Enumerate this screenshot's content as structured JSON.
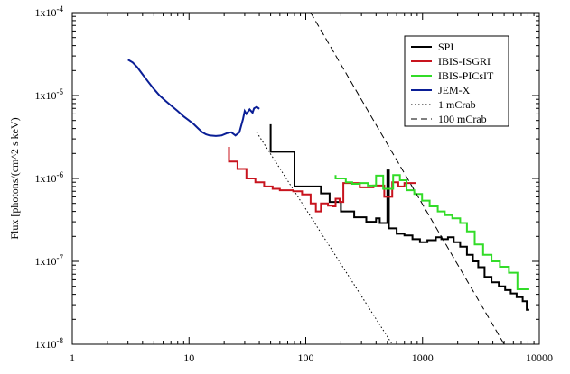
{
  "chart_data": {
    "type": "line",
    "xlabel": "",
    "ylabel": "Flux [photons/(cm^2 s keV)",
    "xscale": "log",
    "yscale": "log",
    "xlim": [
      1,
      10000
    ],
    "ylim": [
      1e-08,
      0.0001
    ],
    "grid": false,
    "legend_position": "top-right",
    "x_tick_labels": [
      "1",
      "10",
      "100",
      "1000",
      "10000"
    ],
    "y_tick_labels": [
      "1x10^-8",
      "1x10^-7",
      "1x10^-6",
      "1x10^-5",
      "1x10^-4"
    ],
    "series": [
      {
        "name": "SPI",
        "color": "#000000",
        "dash": "solid",
        "points": [
          [
            50,
            4.5e-06
          ],
          [
            50,
            2.1e-06
          ],
          [
            80,
            2.1e-06
          ],
          [
            80,
            8e-07
          ],
          [
            135,
            8e-07
          ],
          [
            135,
            6.6e-07
          ],
          [
            160,
            6.6e-07
          ],
          [
            160,
            5.2e-07
          ],
          [
            200,
            5.2e-07
          ],
          [
            200,
            4e-07
          ],
          [
            260,
            4e-07
          ],
          [
            260,
            3.4e-07
          ],
          [
            330,
            3.4e-07
          ],
          [
            330,
            3e-07
          ],
          [
            400,
            3e-07
          ],
          [
            400,
            3.3e-07
          ],
          [
            430,
            3.3e-07
          ],
          [
            430,
            2.9e-07
          ],
          [
            500,
            2.9e-07
          ],
          [
            500,
            1.25e-06
          ],
          [
            515,
            1.25e-06
          ],
          [
            515,
            2.5e-07
          ],
          [
            600,
            2.5e-07
          ],
          [
            600,
            2.15e-07
          ],
          [
            700,
            2.15e-07
          ],
          [
            700,
            2.05e-07
          ],
          [
            820,
            2.05e-07
          ],
          [
            820,
            1.85e-07
          ],
          [
            950,
            1.85e-07
          ],
          [
            950,
            1.7e-07
          ],
          [
            1100,
            1.7e-07
          ],
          [
            1100,
            1.8e-07
          ],
          [
            1300,
            1.8e-07
          ],
          [
            1300,
            1.95e-07
          ],
          [
            1450,
            1.95e-07
          ],
          [
            1450,
            1.85e-07
          ],
          [
            1650,
            1.85e-07
          ],
          [
            1650,
            1.95e-07
          ],
          [
            1850,
            1.95e-07
          ],
          [
            1850,
            1.7e-07
          ],
          [
            2100,
            1.7e-07
          ],
          [
            2100,
            1.5e-07
          ],
          [
            2400,
            1.5e-07
          ],
          [
            2400,
            1.2e-07
          ],
          [
            2700,
            1.2e-07
          ],
          [
            2700,
            1e-07
          ],
          [
            3000,
            1e-07
          ],
          [
            3000,
            8.5e-08
          ],
          [
            3400,
            8.5e-08
          ],
          [
            3400,
            6.5e-08
          ],
          [
            3900,
            6.5e-08
          ],
          [
            3900,
            5.6e-08
          ],
          [
            4500,
            5.6e-08
          ],
          [
            4500,
            5e-08
          ],
          [
            5100,
            5e-08
          ],
          [
            5100,
            4.5e-08
          ],
          [
            5700,
            4.5e-08
          ],
          [
            5700,
            4.1e-08
          ],
          [
            6400,
            4.1e-08
          ],
          [
            6400,
            3.7e-08
          ],
          [
            7200,
            3.7e-08
          ],
          [
            7200,
            3.3e-08
          ],
          [
            7800,
            3.3e-08
          ],
          [
            7800,
            2.6e-08
          ],
          [
            8200,
            2.6e-08
          ]
        ]
      },
      {
        "name": "IBIS-ISGRI",
        "color": "#c8141e",
        "dash": "solid",
        "points": [
          [
            22,
            2.4e-06
          ],
          [
            22,
            1.6e-06
          ],
          [
            26,
            1.6e-06
          ],
          [
            26,
            1.3e-06
          ],
          [
            31,
            1.3e-06
          ],
          [
            31,
            1e-06
          ],
          [
            37,
            1e-06
          ],
          [
            37,
            9e-07
          ],
          [
            44,
            9e-07
          ],
          [
            44,
            8e-07
          ],
          [
            52,
            8e-07
          ],
          [
            52,
            7.5e-07
          ],
          [
            60,
            7.5e-07
          ],
          [
            60,
            7.2e-07
          ],
          [
            78,
            7.2e-07
          ],
          [
            78,
            7e-07
          ],
          [
            93,
            7e-07
          ],
          [
            93,
            6.4e-07
          ],
          [
            110,
            6.4e-07
          ],
          [
            110,
            5e-07
          ],
          [
            122,
            5e-07
          ],
          [
            122,
            4e-07
          ],
          [
            135,
            4e-07
          ],
          [
            135,
            5e-07
          ],
          [
            155,
            5e-07
          ],
          [
            155,
            4.7e-07
          ],
          [
            170,
            4.7e-07
          ],
          [
            170,
            4.6e-07
          ],
          [
            180,
            4.6e-07
          ],
          [
            180,
            5.7e-07
          ],
          [
            195,
            5.7e-07
          ],
          [
            195,
            5.2e-07
          ],
          [
            210,
            5.2e-07
          ],
          [
            210,
            8.8e-07
          ],
          [
            290,
            8.8e-07
          ],
          [
            290,
            7.8e-07
          ],
          [
            380,
            7.8e-07
          ],
          [
            380,
            8.2e-07
          ],
          [
            470,
            8.2e-07
          ],
          [
            470,
            6e-07
          ],
          [
            550,
            6e-07
          ],
          [
            550,
            9e-07
          ],
          [
            620,
            9e-07
          ],
          [
            620,
            8e-07
          ],
          [
            700,
            8e-07
          ],
          [
            700,
            8.8e-07
          ],
          [
            880,
            8.8e-07
          ]
        ]
      },
      {
        "name": "IBIS-PICsIT",
        "color": "#32dc28",
        "dash": "solid",
        "points": [
          [
            180,
            1.1e-06
          ],
          [
            180,
            1e-06
          ],
          [
            220,
            1e-06
          ],
          [
            220,
            9e-07
          ],
          [
            250,
            9e-07
          ],
          [
            250,
            8.6e-07
          ],
          [
            290,
            8.6e-07
          ],
          [
            290,
            8.8e-07
          ],
          [
            340,
            8.8e-07
          ],
          [
            340,
            8.2e-07
          ],
          [
            400,
            8.2e-07
          ],
          [
            400,
            1.08e-06
          ],
          [
            460,
            1.08e-06
          ],
          [
            460,
            7.5e-07
          ],
          [
            560,
            7.5e-07
          ],
          [
            560,
            1.1e-06
          ],
          [
            640,
            1.1e-06
          ],
          [
            640,
            9.5e-07
          ],
          [
            730,
            9.5e-07
          ],
          [
            730,
            7.2e-07
          ],
          [
            850,
            7.2e-07
          ],
          [
            850,
            6.5e-07
          ],
          [
            990,
            6.5e-07
          ],
          [
            990,
            5.4e-07
          ],
          [
            1150,
            5.4e-07
          ],
          [
            1150,
            4.6e-07
          ],
          [
            1350,
            4.6e-07
          ],
          [
            1350,
            4e-07
          ],
          [
            1550,
            4e-07
          ],
          [
            1550,
            3.6e-07
          ],
          [
            1800,
            3.6e-07
          ],
          [
            1800,
            3.3e-07
          ],
          [
            2100,
            3.3e-07
          ],
          [
            2100,
            2.9e-07
          ],
          [
            2400,
            2.9e-07
          ],
          [
            2400,
            2.3e-07
          ],
          [
            2800,
            2.3e-07
          ],
          [
            2800,
            1.6e-07
          ],
          [
            3300,
            1.6e-07
          ],
          [
            3300,
            1.2e-07
          ],
          [
            3900,
            1.2e-07
          ],
          [
            3900,
            1e-07
          ],
          [
            4600,
            1e-07
          ],
          [
            4600,
            8.6e-08
          ],
          [
            5500,
            8.6e-08
          ],
          [
            5500,
            7.3e-08
          ],
          [
            6500,
            7.3e-08
          ],
          [
            6500,
            4.6e-08
          ],
          [
            8200,
            4.6e-08
          ]
        ]
      },
      {
        "name": "JEM-X",
        "color": "#0a1e96",
        "dash": "solid",
        "points": [
          [
            3,
            2.7e-05
          ],
          [
            3.3,
            2.5e-05
          ],
          [
            3.6,
            2.2e-05
          ],
          [
            4,
            1.8e-05
          ],
          [
            4.5,
            1.45e-05
          ],
          [
            5,
            1.2e-05
          ],
          [
            5.6,
            1e-05
          ],
          [
            6.3,
            8.6e-06
          ],
          [
            7,
            7.6e-06
          ],
          [
            8,
            6.5e-06
          ],
          [
            9,
            5.6e-06
          ],
          [
            10,
            5e-06
          ],
          [
            11,
            4.5e-06
          ],
          [
            12,
            4e-06
          ],
          [
            13,
            3.6e-06
          ],
          [
            14,
            3.4e-06
          ],
          [
            15,
            3.3e-06
          ],
          [
            17,
            3.25e-06
          ],
          [
            19,
            3.3e-06
          ],
          [
            21,
            3.5e-06
          ],
          [
            23,
            3.6e-06
          ],
          [
            25,
            3.3e-06
          ],
          [
            27,
            3.6e-06
          ],
          [
            29,
            5.2e-06
          ],
          [
            30,
            6.5e-06
          ],
          [
            31,
            6e-06
          ],
          [
            33,
            6.8e-06
          ],
          [
            35,
            6.2e-06
          ],
          [
            36,
            7e-06
          ],
          [
            38,
            7.3e-06
          ],
          [
            40,
            6.9e-06
          ]
        ]
      },
      {
        "name": "1 mCrab",
        "color": "#000000",
        "dash": "dotted",
        "points": [
          [
            38,
            3.6e-06
          ],
          [
            550,
            1e-08
          ]
        ]
      },
      {
        "name": "100 mCrab",
        "color": "#000000",
        "dash": "dashed",
        "points": [
          [
            110,
            0.0001
          ],
          [
            5000,
            1e-08
          ]
        ]
      }
    ]
  }
}
